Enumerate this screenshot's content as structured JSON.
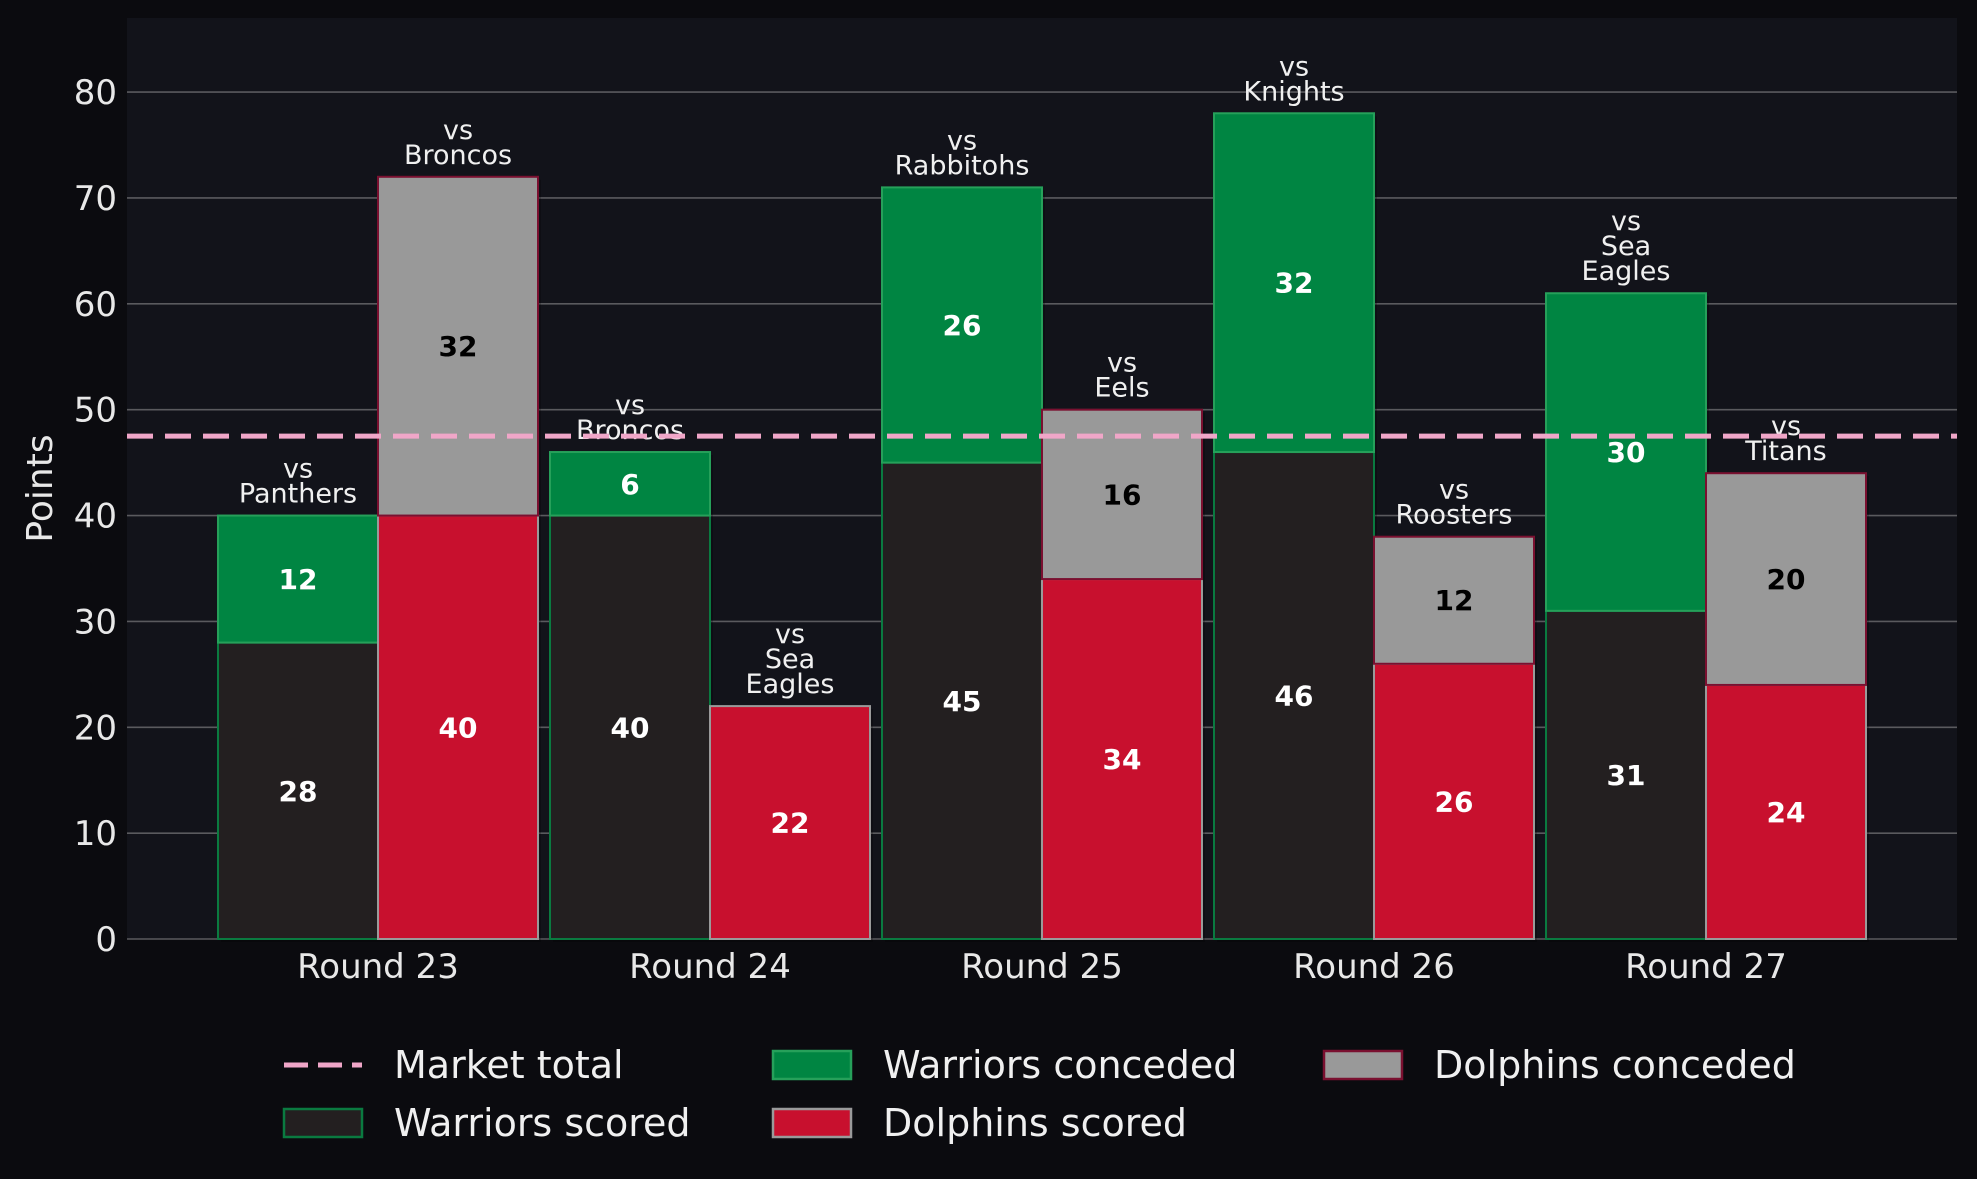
{
  "chart_data": {
    "type": "bar",
    "stacked": true,
    "categories": [
      "Round 23",
      "Round 24",
      "Round 25",
      "Round 26",
      "Round 27"
    ],
    "ylabel": "Points",
    "xlabel": "",
    "ylim": [
      0,
      87
    ],
    "yticks": [
      0,
      10,
      20,
      30,
      40,
      50,
      60,
      70,
      80
    ],
    "grid": "horizontal",
    "legend_position": "bottom",
    "market_total": {
      "name": "Market total",
      "value": 47.5,
      "color": "#f0a6c8"
    },
    "teams": [
      {
        "team": "Warriors",
        "opponents": [
          "vs\nPanthers",
          "vs\nBroncos",
          "vs\nRabbitohs",
          "vs\nKnights",
          "vs\nSea\nEagles"
        ],
        "series": [
          {
            "name": "Warriors scored",
            "values": [
              28,
              40,
              45,
              46,
              31
            ],
            "color": "#231f20",
            "edge": "#0a7a40",
            "label_color": "#ffffff"
          },
          {
            "name": "Warriors conceded",
            "values": [
              12,
              6,
              26,
              32,
              30
            ],
            "color": "#008542",
            "edge": "#26a05a",
            "label_color": "#ffffff"
          }
        ]
      },
      {
        "team": "Dolphins",
        "opponents": [
          "vs\nBroncos",
          "vs\nSea\nEagles",
          "vs\nEels",
          "vs\nRoosters",
          "vs\nTitans"
        ],
        "series": [
          {
            "name": "Dolphins scored",
            "values": [
              40,
              22,
              34,
              26,
              24
            ],
            "color": "#c8102e",
            "edge": "#9a9a9a",
            "label_color": "#ffffff"
          },
          {
            "name": "Dolphins conceded",
            "values": [
              32,
              0,
              16,
              12,
              20
            ],
            "color": "#999999",
            "edge": "#7a1030",
            "label_color": "#000000"
          }
        ]
      }
    ]
  }
}
